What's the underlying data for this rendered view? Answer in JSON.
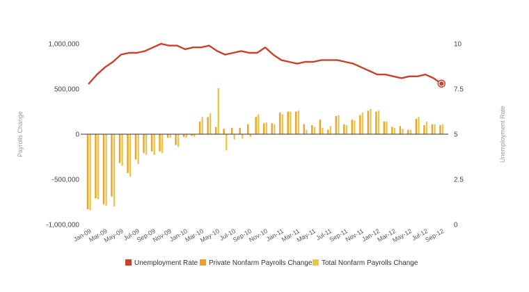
{
  "chart_data": {
    "type": "bar+line",
    "left_axis": {
      "label": "Payrolls Change",
      "ylim": [
        -1000000,
        1000000
      ],
      "ticks": [
        1000000,
        500000,
        0,
        -500000,
        -1000000
      ],
      "tick_labels": [
        "1,000,000",
        "500,000",
        "0",
        "-500,000",
        "-1,000,000"
      ]
    },
    "right_axis": {
      "label": "Unemployment Rate",
      "ylim": [
        0,
        10
      ],
      "ticks": [
        10,
        7.5,
        5,
        2.5,
        0
      ],
      "tick_labels": [
        "10",
        "7.5",
        "5",
        "2.5",
        "0"
      ]
    },
    "months": [
      "Jan-09",
      "Feb-09",
      "Mar-09",
      "Apr-09",
      "May-09",
      "Jun-09",
      "Jul-09",
      "Aug-09",
      "Sep-09",
      "Oct-09",
      "Nov-09",
      "Dec-09",
      "Jan-10",
      "Feb-10",
      "Mar-10",
      "Apr-10",
      "May-10",
      "Jun-10",
      "Jul-10",
      "Aug-10",
      "Sep-10",
      "Oct-10",
      "Nov-10",
      "Dec-10",
      "Jan-11",
      "Feb-11",
      "Mar-11",
      "Apr-11",
      "May-11",
      "Jun-11",
      "Jul-11",
      "Aug-11",
      "Sep-11",
      "Oct-11",
      "Nov-11",
      "Dec-11",
      "Jan-12",
      "Feb-12",
      "Mar-12",
      "Apr-12",
      "May-12",
      "Jun-12",
      "Jul-12",
      "Aug-12",
      "Sep-12"
    ],
    "x_tick_labels": [
      "Jan-09",
      "Mar-09",
      "May-09",
      "Jul-09",
      "Sep-09",
      "Nov-09",
      "Jan-10",
      "Mar-10",
      "May-10",
      "Jul-10",
      "Sep-10",
      "Nov-10",
      "Jan-11",
      "Mar-11",
      "May-11",
      "Jul-11",
      "Sep-11",
      "Nov-11",
      "Jan-12",
      "Mar-12",
      "May-12",
      "Jul-12",
      "Sep-12"
    ],
    "series": [
      {
        "name": "Unemployment Rate",
        "type": "line",
        "axis": "right",
        "color": "#c8412b",
        "values": [
          7.8,
          8.3,
          8.7,
          9.0,
          9.4,
          9.5,
          9.5,
          9.6,
          9.8,
          10.0,
          9.9,
          9.9,
          9.7,
          9.8,
          9.8,
          9.9,
          9.6,
          9.4,
          9.5,
          9.6,
          9.5,
          9.5,
          9.8,
          9.4,
          9.1,
          9.0,
          8.9,
          9.0,
          9.0,
          9.1,
          9.1,
          9.1,
          9.0,
          8.9,
          8.7,
          8.5,
          8.3,
          8.3,
          8.2,
          8.1,
          8.2,
          8.2,
          8.3,
          8.1,
          7.8
        ]
      },
      {
        "name": "Private Nonfarm Payrolls Change",
        "type": "bar",
        "axis": "left",
        "color": "#f0a023",
        "values": [
          -830000,
          -710000,
          -775000,
          -690000,
          -320000,
          -430000,
          -280000,
          -210000,
          -190000,
          -190000,
          -40000,
          -120000,
          -30000,
          -20000,
          140000,
          190000,
          80000,
          60000,
          70000,
          70000,
          110000,
          190000,
          120000,
          120000,
          240000,
          250000,
          250000,
          110000,
          100000,
          160000,
          50000,
          200000,
          110000,
          160000,
          210000,
          260000,
          250000,
          140000,
          80000,
          90000,
          50000,
          170000,
          100000,
          110000,
          100000
        ]
      },
      {
        "name": "Total Nonfarm Payrolls Change",
        "type": "bar",
        "axis": "left",
        "color": "#e9c84a",
        "values": [
          -840000,
          -720000,
          -790000,
          -800000,
          -350000,
          -470000,
          -330000,
          -230000,
          -230000,
          -210000,
          -40000,
          -140000,
          -40000,
          -30000,
          190000,
          230000,
          510000,
          -180000,
          -60000,
          -50000,
          -30000,
          220000,
          130000,
          110000,
          220000,
          250000,
          260000,
          50000,
          80000,
          70000,
          90000,
          210000,
          100000,
          150000,
          240000,
          280000,
          260000,
          140000,
          70000,
          60000,
          50000,
          190000,
          140000,
          110000,
          110000
        ]
      }
    ],
    "legend": {
      "position": "bottom",
      "items": [
        "Unemployment Rate",
        "Private Nonfarm Payrolls Change",
        "Total Nonfarm Payrolls Change"
      ]
    },
    "grid": false
  }
}
